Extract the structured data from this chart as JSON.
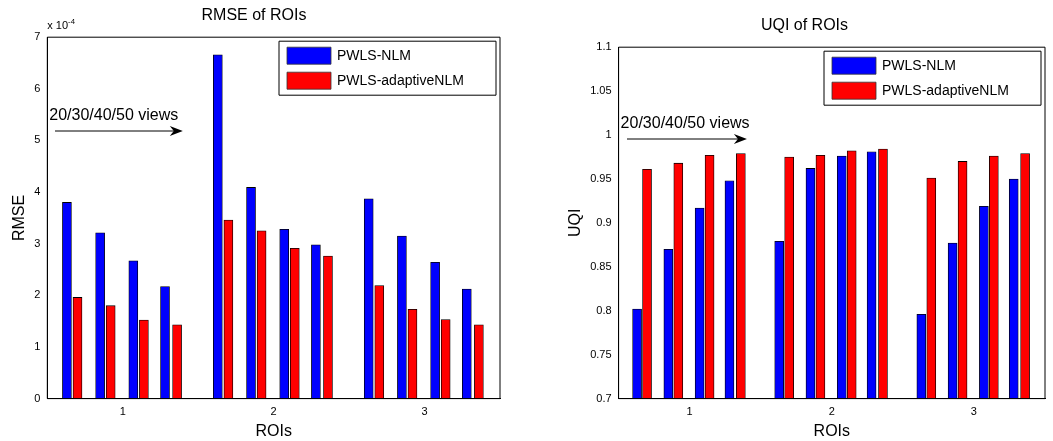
{
  "chart_data": [
    {
      "type": "bar",
      "title": "RMSE of ROIs",
      "xlabel": "ROIs",
      "ylabel": "RMSE",
      "xlim": [
        0.5,
        3.5
      ],
      "xticks": [
        1,
        2,
        3
      ],
      "ylim": [
        0,
        7
      ],
      "yticks": [
        0,
        1,
        2,
        3,
        4,
        5,
        6,
        7
      ],
      "legend": "top right",
      "annotations": [
        "x 10$^{-4}$",
        "20/30/40/50 views"
      ],
      "series": [
        {
          "name": "PWLS-NLM",
          "color": "#0000ff",
          "x": [
            0.63,
            0.85,
            1.07,
            1.28,
            1.63,
            1.85,
            2.07,
            2.28,
            2.63,
            2.85,
            3.07,
            3.28
          ],
          "values": [
            3.8,
            3.21,
            2.67,
            2.17,
            6.66,
            4.09,
            3.28,
            2.98,
            3.87,
            3.15,
            2.64,
            2.12
          ]
        },
        {
          "name": "PWLS-adaptiveNLM",
          "color": "#ff0000",
          "x": [
            0.7,
            0.92,
            1.14,
            1.36,
            1.7,
            1.92,
            2.14,
            2.36,
            2.7,
            2.92,
            3.14,
            3.36
          ],
          "values": [
            1.96,
            1.8,
            1.52,
            1.43,
            3.46,
            3.25,
            2.91,
            2.76,
            2.19,
            1.73,
            1.53,
            1.43
          ]
        }
      ]
    },
    {
      "type": "bar",
      "title": "UQI of ROIs",
      "xlabel": "ROIs",
      "ylabel": "UQI",
      "xlim": [
        0.5,
        3.5
      ],
      "xticks": [
        1,
        2,
        3
      ],
      "ylim": [
        0.7,
        1.1
      ],
      "yticks": [
        0.7,
        0.75,
        0.8,
        0.85,
        0.9,
        0.95,
        1,
        1.05,
        1.1
      ],
      "legend": "top right",
      "annotations": [
        "20/30/40/50 views"
      ],
      "series": [
        {
          "name": "PWLS-NLM",
          "color": "#0000ff",
          "x": [
            0.63,
            0.85,
            1.07,
            1.28,
            1.63,
            1.85,
            2.07,
            2.28,
            2.63,
            2.85,
            3.07,
            3.28
          ],
          "values": [
            0.802,
            0.87,
            0.917,
            0.948,
            0.879,
            0.962,
            0.976,
            0.981,
            0.796,
            0.877,
            0.919,
            0.95
          ]
        },
        {
          "name": "PWLS-adaptiveNLM",
          "color": "#ff0000",
          "x": [
            0.7,
            0.92,
            1.14,
            1.36,
            1.7,
            1.92,
            2.14,
            2.36,
            2.7,
            2.92,
            3.14,
            3.36
          ],
          "values": [
            0.961,
            0.968,
            0.977,
            0.979,
            0.975,
            0.977,
            0.982,
            0.984,
            0.951,
            0.97,
            0.976,
            0.979
          ]
        }
      ]
    }
  ]
}
